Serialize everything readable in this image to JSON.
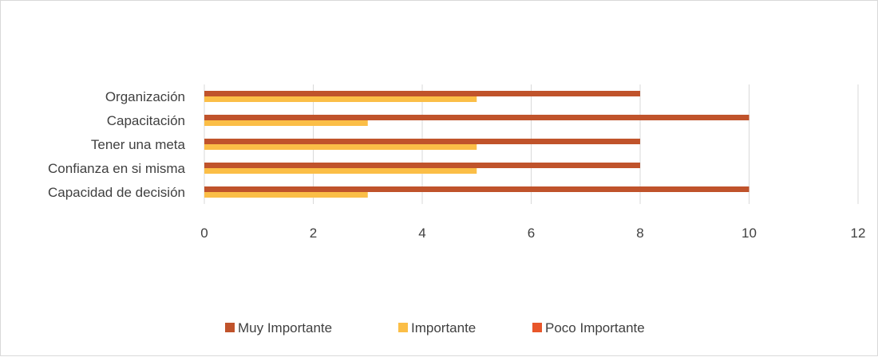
{
  "chart_data": {
    "type": "bar",
    "orientation": "horizontal",
    "categories": [
      "Capacidad de decisión",
      "Confianza en si misma",
      "Tener una meta",
      "Capacitación",
      "Organización "
    ],
    "series": [
      {
        "name": "Muy Importante",
        "values": [
          10,
          8,
          8,
          10,
          8
        ],
        "color": "#C0532B"
      },
      {
        "name": "Importante",
        "values": [
          3,
          5,
          5,
          3,
          5
        ],
        "color": "#FBBE47"
      },
      {
        "name": "Poco Importante",
        "values": [
          0,
          0,
          0,
          0,
          0
        ],
        "color": "#E8562A"
      }
    ],
    "x_ticks": [
      "0",
      "2",
      "4",
      "6",
      "8",
      "10",
      "12"
    ],
    "xlim": [
      0,
      12
    ],
    "grid": "vertical",
    "legend_position": "bottom",
    "title": "",
    "xlabel": "",
    "ylabel": ""
  }
}
